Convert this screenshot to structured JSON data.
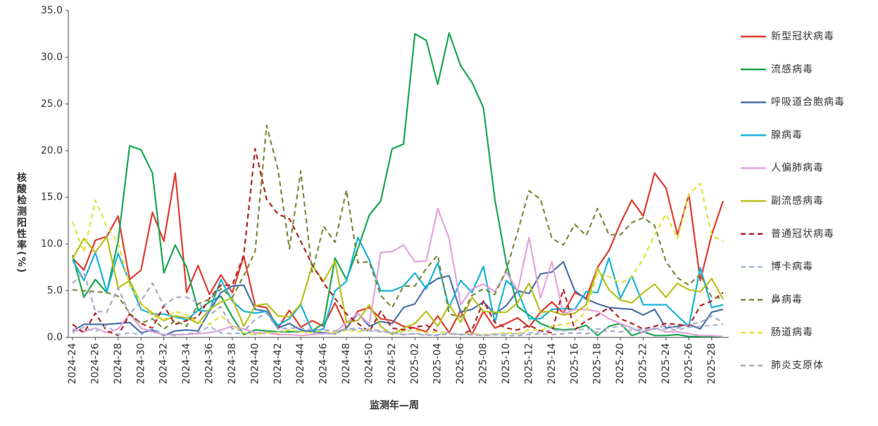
{
  "chart_data": {
    "type": "line",
    "ylabel": "核酸检测阳性率(%)",
    "xlabel": "监测年—周",
    "categories": [
      "2024-24",
      null,
      "2024-26",
      null,
      "2024-28",
      null,
      "2024-30",
      null,
      "2024-32",
      null,
      "2024-34",
      null,
      "2024-36",
      null,
      "2024-38",
      null,
      "2024-40",
      null,
      "2024-42",
      null,
      "2024-44",
      null,
      "2024-46",
      null,
      "2024-48",
      null,
      "2024-50",
      null,
      "2024-52",
      null,
      "2025-02",
      null,
      "2025-04",
      null,
      "2025-06",
      null,
      "2025-08",
      null,
      "2025-10",
      null,
      "2025-12",
      null,
      "2025-14",
      null,
      "2025-16",
      null,
      "2025-18",
      null,
      "2025-20",
      null,
      "2025-22",
      null,
      "2025-24",
      null,
      "2025-26",
      null,
      "2025-28",
      null
    ],
    "ylim": [
      0,
      35
    ],
    "yticks": [
      {
        "value": 0,
        "label": "0.0"
      },
      {
        "value": 5,
        "label": "5.0"
      },
      {
        "value": 10,
        "label": "10.0"
      },
      {
        "value": 15,
        "label": "15.0"
      },
      {
        "value": 20,
        "label": "20.0"
      },
      {
        "value": 25,
        "label": "25.0"
      },
      {
        "value": 30,
        "label": "30.0"
      },
      {
        "value": 35,
        "label": "35.0"
      }
    ],
    "legend": "right",
    "series": [
      {
        "name": "新型冠状病毒",
        "color": "#e03a2e",
        "dashed": false,
        "values": [
          8.5,
          7.2,
          10.4,
          10.8,
          13.0,
          6.2,
          7.2,
          13.4,
          10.3,
          17.6,
          4.8,
          7.7,
          4.6,
          6.7,
          4.8,
          8.7,
          3.4,
          3.2,
          1.0,
          2.9,
          1.1,
          1.8,
          1.2,
          3.7,
          1.0,
          2.8,
          3.2,
          2.0,
          1.8,
          1.2,
          1.0,
          0.6,
          2.3,
          0.5,
          2.9,
          0.3,
          2.8,
          1.0,
          1.5,
          2.1,
          1.1,
          2.7,
          3.8,
          2.6,
          4.8,
          4.2,
          7.5,
          9.3,
          12.2,
          14.7,
          13.0,
          17.6,
          16.0,
          11.0,
          15.3,
          6.1,
          11.0,
          14.6
        ]
      },
      {
        "name": "流感病毒",
        "color": "#1aa650",
        "dashed": false,
        "values": [
          8.8,
          4.3,
          6.2,
          4.8,
          10.3,
          20.5,
          20.1,
          17.6,
          6.9,
          9.9,
          7.5,
          2.9,
          3.8,
          4.4,
          2.2,
          0.3,
          0.8,
          0.7,
          0.6,
          0.6,
          0.6,
          0.7,
          1.5,
          8.5,
          6.2,
          9.5,
          13.1,
          14.6,
          20.2,
          20.7,
          32.5,
          31.8,
          27.1,
          32.6,
          29.1,
          27.3,
          24.6,
          14.8,
          8.0,
          3.3,
          2.4,
          1.5,
          1.0,
          0.8,
          0.9,
          1.3,
          0.2,
          1.2,
          1.5,
          0.2,
          0.6,
          0.2,
          0.2,
          0.3,
          0.1,
          0.1,
          0.1,
          0.1
        ]
      },
      {
        "name": "呼吸道合胞病毒",
        "color": "#4a72a8",
        "dashed": false,
        "values": [
          0.7,
          1.4,
          1.4,
          1.4,
          1.5,
          1.6,
          0.5,
          0.8,
          0.2,
          0.7,
          0.8,
          0.7,
          2.8,
          4.8,
          5.5,
          5.6,
          3.0,
          2.8,
          1.0,
          1.5,
          0.8,
          0.6,
          0.5,
          0.4,
          1.0,
          2.6,
          1.2,
          1.7,
          1.5,
          3.2,
          3.6,
          5.5,
          6.3,
          6.6,
          2.7,
          3.0,
          3.8,
          2.5,
          3.4,
          5.0,
          4.7,
          6.8,
          7.0,
          8.1,
          5.0,
          4.1,
          3.6,
          3.2,
          3.1,
          3.0,
          2.4,
          3.0,
          1.0,
          1.2,
          1.4,
          0.9,
          2.7,
          3.0
        ]
      },
      {
        "name": "腺病毒",
        "color": "#17b3d6",
        "dashed": false,
        "values": [
          8.3,
          6.1,
          9.1,
          4.9,
          9.0,
          5.9,
          3.0,
          2.5,
          2.5,
          2.2,
          1.9,
          2.9,
          2.8,
          6.2,
          3.9,
          2.8,
          2.6,
          2.8,
          1.3,
          2.0,
          3.5,
          0.7,
          0.9,
          5.0,
          6.0,
          10.7,
          8.3,
          5.0,
          5.0,
          5.5,
          6.9,
          5.2,
          8.0,
          3.2,
          6.1,
          4.8,
          7.6,
          1.6,
          6.1,
          5.0,
          2.0,
          2.0,
          3.0,
          3.1,
          3.0,
          4.9,
          4.8,
          8.5,
          4.2,
          6.6,
          3.5,
          3.5,
          3.5,
          2.3,
          1.2,
          7.5,
          3.2,
          3.5
        ]
      },
      {
        "name": "人偏肺病毒",
        "color": "#e3a3d9",
        "dashed": false,
        "values": [
          0.9,
          0.6,
          1.0,
          0.5,
          0.9,
          2.5,
          1.0,
          0.6,
          0.3,
          0.3,
          0.3,
          0.4,
          0.5,
          0.8,
          1.2,
          0.9,
          0.5,
          0.5,
          0.3,
          0.3,
          0.2,
          0.3,
          0.4,
          0.5,
          1.6,
          2.6,
          1.4,
          9.1,
          9.2,
          9.9,
          8.1,
          8.2,
          13.8,
          10.6,
          3.5,
          5.2,
          5.7,
          4.9,
          7.0,
          5.0,
          10.7,
          4.2,
          8.1,
          2.5,
          3.0,
          3.0,
          2.8,
          2.0,
          1.5,
          1.0,
          0.5,
          1.0,
          0.6,
          0.6,
          0.4,
          0.2,
          0.2,
          0.1
        ]
      },
      {
        "name": "副流感病毒",
        "color": "#b9bf1c",
        "dashed": false,
        "values": [
          8.4,
          10.6,
          9.1,
          10.8,
          5.3,
          6.1,
          3.6,
          2.6,
          1.8,
          2.3,
          2.1,
          1.5,
          3.0,
          3.8,
          4.2,
          1.2,
          3.4,
          3.6,
          2.3,
          2.2,
          3.6,
          7.7,
          6.0,
          8.2,
          1.6,
          1.8,
          3.5,
          1.2,
          0.3,
          1.0,
          1.5,
          2.8,
          1.2,
          3.5,
          1.6,
          4.3,
          2.8,
          2.7,
          2.7,
          3.7,
          5.8,
          2.7,
          2.8,
          2.4,
          2.6,
          3.5,
          7.4,
          5.1,
          4.0,
          3.7,
          4.8,
          5.7,
          4.3,
          5.8,
          5.1,
          4.9,
          6.3,
          4.1
        ]
      },
      {
        "name": "普通冠状病毒",
        "color": "#b22222",
        "dashed": true,
        "values": [
          1.4,
          0.5,
          2.6,
          0.7,
          0.2,
          2.5,
          1.5,
          1.0,
          3.4,
          1.4,
          1.8,
          2.2,
          4.2,
          5.6,
          5.6,
          8.8,
          20.2,
          14.8,
          13.2,
          12.7,
          10.3,
          7.8,
          5.8,
          4.2,
          2.5,
          1.5,
          0.6,
          2.8,
          1.0,
          0.8,
          1.1,
          1.3,
          0.6,
          0.4,
          0.3,
          0.8,
          3.9,
          1.6,
          1.0,
          0.8,
          1.3,
          0.7,
          0.5,
          5.2,
          0.8,
          1.8,
          2.4,
          3.2,
          2.0,
          1.5,
          0.9,
          1.2,
          1.5,
          1.4,
          1.2,
          3.4,
          3.9,
          4.8
        ]
      },
      {
        "name": "博卡病毒",
        "color": "#a8b8d8",
        "dashed": true,
        "values": [
          0.5,
          1.1,
          0.6,
          1.3,
          0.3,
          0.5,
          0.3,
          1.0,
          0.3,
          0.2,
          0.4,
          0.5,
          1.2,
          0.5,
          0.4,
          0.5,
          0.3,
          0.5,
          0.6,
          0.8,
          0.6,
          0.5,
          0.4,
          0.4,
          0.8,
          0.8,
          0.7,
          0.6,
          0.5,
          0.3,
          0.4,
          0.2,
          0.3,
          0.5,
          0.3,
          0.4,
          0.2,
          0.3,
          0.4,
          0.4,
          0.5,
          0.6,
          0.8,
          0.7,
          0.8,
          0.9,
          0.9,
          1.0,
          1.2,
          1.0,
          0.8,
          1.0,
          0.9,
          0.8,
          1.1,
          1.2,
          1.3,
          1.4
        ]
      },
      {
        "name": "鼻病毒",
        "color": "#7a8a3a",
        "dashed": true,
        "values": [
          5.1,
          5.0,
          4.9,
          4.8,
          4.4,
          2.6,
          1.5,
          2.0,
          0.9,
          1.8,
          1.2,
          3.6,
          4.1,
          5.2,
          4.3,
          6.6,
          9.2,
          22.7,
          18.0,
          9.5,
          17.8,
          7.0,
          11.9,
          10.2,
          15.8,
          8.0,
          8.1,
          4.5,
          3.2,
          5.5,
          5.5,
          7.4,
          8.8,
          2.5,
          2.2,
          4.5,
          5.2,
          4.6,
          7.2,
          11.3,
          15.7,
          14.8,
          10.6,
          9.9,
          12.1,
          10.9,
          13.8,
          11.0,
          11.0,
          12.3,
          12.8,
          12.0,
          8.1,
          6.4,
          5.6,
          6.8,
          4.3,
          4.2
        ]
      },
      {
        "name": "肠道病毒",
        "color": "#dfe23c",
        "dashed": true,
        "values": [
          12.4,
          9.1,
          14.7,
          11.9,
          10.1,
          5.6,
          3.7,
          2.3,
          1.9,
          2.8,
          2.4,
          1.6,
          1.4,
          2.3,
          1.3,
          0.5,
          0.3,
          0.5,
          0.5,
          0.8,
          0.6,
          0.5,
          0.8,
          0.5,
          0.8,
          0.6,
          0.9,
          0.7,
          0.5,
          0.6,
          0.8,
          0.5,
          0.6,
          0.4,
          0.3,
          0.4,
          0.3,
          0.4,
          0.5,
          0.4,
          0.8,
          0.8,
          1.2,
          1.4,
          1.6,
          2.8,
          7.0,
          6.5,
          5.8,
          6.5,
          8.4,
          11.0,
          13.2,
          10.6,
          15.3,
          16.5,
          10.9,
          10.3
        ]
      },
      {
        "name": "肺炎支原体",
        "color": "#a9a8c8",
        "dashed": true,
        "values": [
          5.8,
          7.0,
          2.8,
          2.7,
          5.3,
          2.5,
          3.9,
          5.8,
          3.4,
          4.3,
          4.3,
          3.7,
          2.4,
          3.3,
          0.9,
          0.7,
          1.9,
          2.6,
          0.9,
          1.0,
          1.0,
          0.8,
          0.8,
          0.7,
          0.9,
          1.0,
          0.8,
          0.7,
          0.5,
          0.3,
          0.4,
          0.3,
          0.2,
          0.4,
          0.3,
          0.3,
          0.2,
          0.3,
          0.2,
          0.2,
          0.3,
          0.4,
          0.3,
          0.4,
          0.5,
          0.4,
          0.6,
          0.7,
          0.6,
          0.8,
          0.7,
          0.9,
          1.3,
          1.0,
          1.4,
          1.6,
          2.3,
          1.6
        ]
      }
    ]
  }
}
